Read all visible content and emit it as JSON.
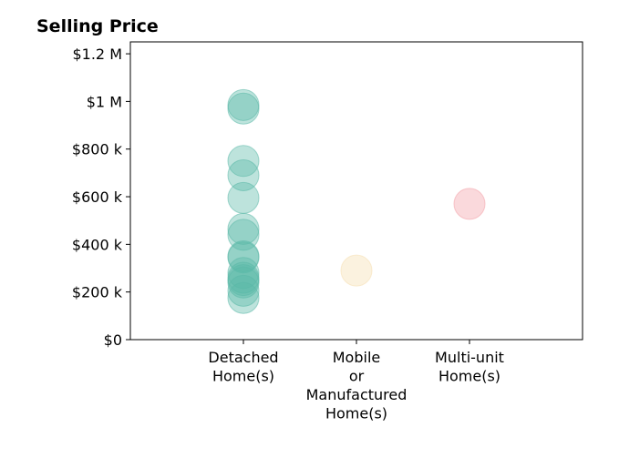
{
  "chart_data": {
    "type": "scatter",
    "title": "Selling Price",
    "xlabel": "",
    "ylabel": "",
    "categories": [
      [
        "Detached",
        "Home(s)"
      ],
      [
        "Mobile",
        "or",
        "Manufactured",
        "Home(s)"
      ],
      [
        "Multi-unit",
        "Home(s)"
      ]
    ],
    "ylim": [
      0,
      1250000
    ],
    "yticks": [
      0,
      200000,
      400000,
      600000,
      800000,
      1000000,
      1200000
    ],
    "ytick_labels": [
      "$0",
      "$200 k",
      "$400 k",
      "$600 k",
      "$800 k",
      "$1 M",
      "$1.2 M"
    ],
    "grid": false,
    "series": [
      {
        "category": "Detached Home(s)",
        "color": "#5bb8a8",
        "values": [
          985000,
          970000,
          750000,
          690000,
          595000,
          465000,
          440000,
          350000,
          345000,
          280000,
          260000,
          250000,
          240000,
          205000,
          175000
        ]
      },
      {
        "category": "Mobile or Manufactured Home(s)",
        "color": "#f5deb0",
        "values": [
          290000
        ]
      },
      {
        "category": "Multi-unit Home(s)",
        "color": "#f2a0a8",
        "values": [
          570000
        ]
      }
    ]
  }
}
